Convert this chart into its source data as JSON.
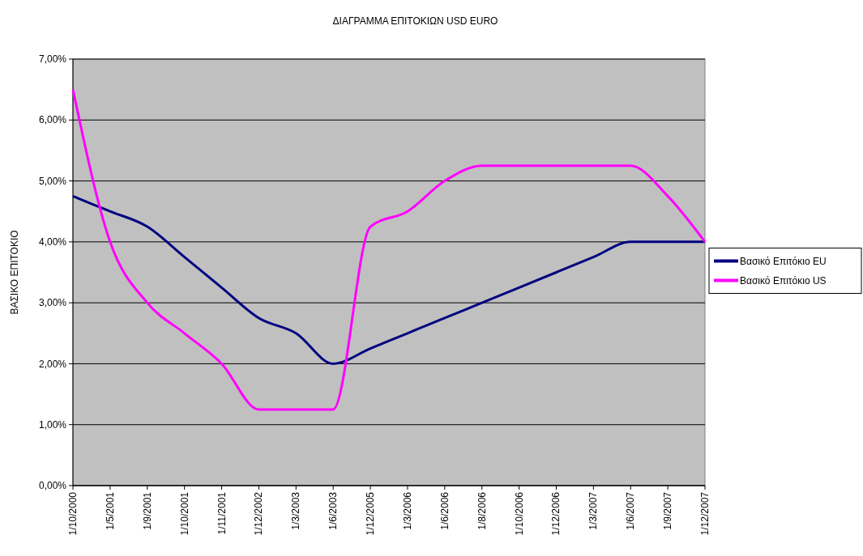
{
  "chart_data": {
    "type": "line",
    "title": "ΔΙΑΓΡΑΜΜΑ ΕΠΙΤΟΚΙΩΝ USD EURO",
    "ylabel": "ΒΑΣΙΚΟ ΕΠΙΤΟΚΙΟ",
    "categories": [
      "1/10/2000",
      "1/5/2001",
      "1/9/2001",
      "1/10/2001",
      "1/11/2001",
      "1/12/2002",
      "1/3/2003",
      "1/6/2003",
      "1/12/2005",
      "1/3/2006",
      "1/6/2006",
      "1/8/2006",
      "1/10/2006",
      "1/12/2006",
      "1/3/2007",
      "1/6/2007",
      "1/9/2007",
      "1/12/2007"
    ],
    "series": [
      {
        "name": "Βασικό Επιτόκιο EU",
        "color": "#000080",
        "values": [
          4.75,
          4.5,
          4.25,
          3.75,
          3.25,
          2.75,
          2.5,
          2.0,
          2.25,
          2.5,
          2.75,
          3.0,
          3.25,
          3.5,
          3.75,
          4.0,
          4.0,
          4.0
        ]
      },
      {
        "name": "Βασικό Επιτόκιο US",
        "color": "#ff00ff",
        "values": [
          6.5,
          4.0,
          3.0,
          2.5,
          2.0,
          1.25,
          1.25,
          1.25,
          4.25,
          4.5,
          5.0,
          5.25,
          5.25,
          5.25,
          5.25,
          5.25,
          4.75,
          4.0
        ]
      }
    ],
    "ylim": [
      0,
      7
    ],
    "yticks": [
      {
        "value": 0,
        "label": "0,00%"
      },
      {
        "value": 1,
        "label": "1,00%"
      },
      {
        "value": 2,
        "label": "2,00%"
      },
      {
        "value": 3,
        "label": "3,00%"
      },
      {
        "value": 4,
        "label": "4,00%"
      },
      {
        "value": 5,
        "label": "5,00%"
      },
      {
        "value": 6,
        "label": "6,00%"
      },
      {
        "value": 7,
        "label": "7,00%"
      }
    ],
    "grid": "y",
    "legend": "right",
    "marker": "none",
    "line_style": "solid"
  }
}
